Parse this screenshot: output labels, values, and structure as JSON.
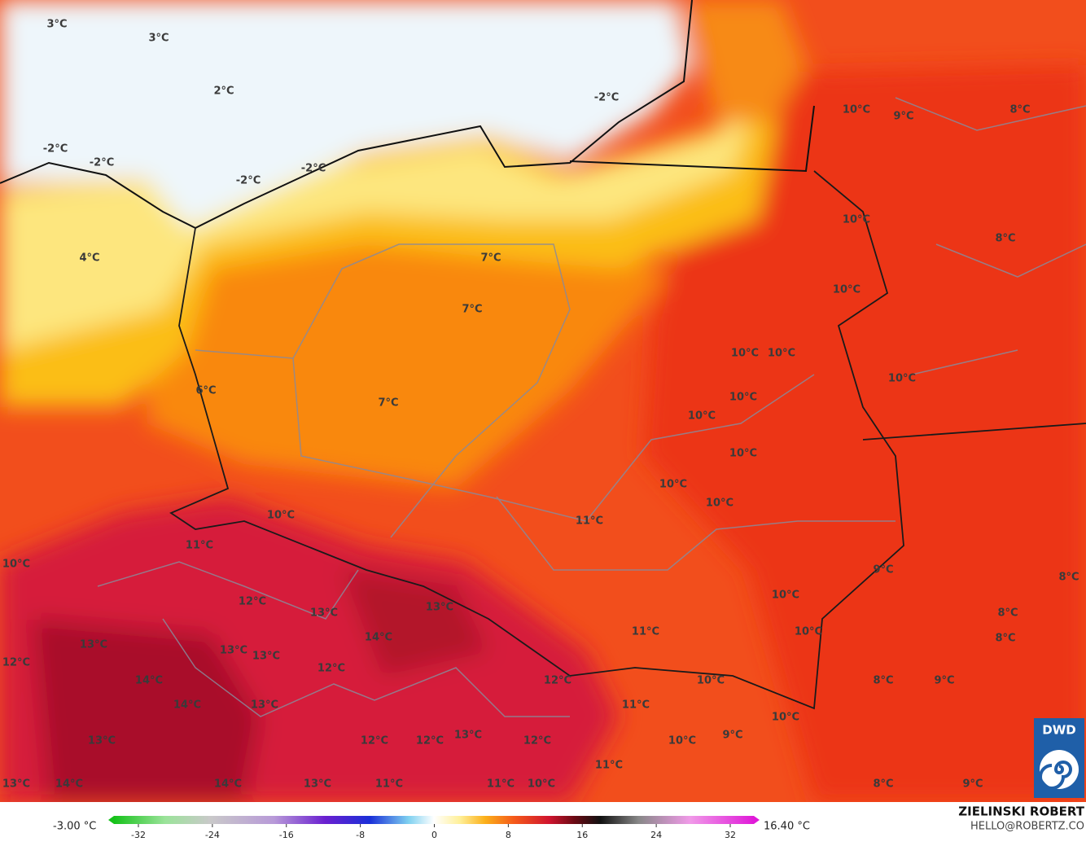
{
  "map": {
    "labels": [
      "3°C",
      "3°C",
      "2°C",
      "-2°C",
      "10°C",
      "9°C",
      "8°C",
      "-2°C",
      "-2°C",
      "-2°C",
      "-2°C",
      "10°C",
      "8°C",
      "4°C",
      "7°C",
      "10°C",
      "7°C",
      "10°C",
      "10°C",
      "10°C",
      "6°C",
      "10°C",
      "7°C",
      "10°C",
      "10°C",
      "10°C",
      "10°C",
      "10°C",
      "11°C",
      "11°C",
      "10°C",
      "9°C",
      "8°C",
      "12°C",
      "10°C",
      "13°C",
      "13°C",
      "8°C",
      "11°C",
      "10°C",
      "14°C",
      "8°C",
      "13°C",
      "13°C",
      "13°C",
      "12°C",
      "12°C",
      "14°C",
      "12°C",
      "10°C",
      "8°C",
      "9°C",
      "14°C",
      "13°C",
      "11°C",
      "10°C",
      "13°C",
      "12°C",
      "12°C",
      "13°C",
      "12°C",
      "10°C",
      "9°C",
      "11°C",
      "13°C",
      "14°C",
      "14°C",
      "13°C",
      "11°C",
      "11°C",
      "10°C",
      "8°C",
      "9°C"
    ]
  },
  "legend": {
    "min_label": "-3.00 °C",
    "max_label": "16.40 °C",
    "ticks": [
      -32,
      -24,
      -16,
      -8,
      0,
      8,
      16,
      24,
      32
    ]
  },
  "credits": {
    "author": "ZIELINSKI ROBERT",
    "email": "HELLO@ROBERTZ.CO"
  },
  "logo": "DWD"
}
